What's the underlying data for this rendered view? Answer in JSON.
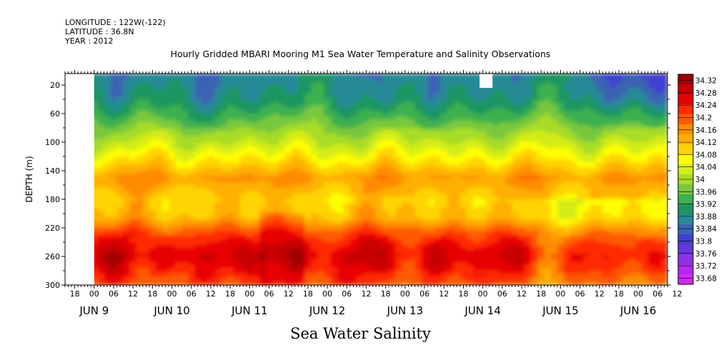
{
  "meta": {
    "longitude": "LONGITUDE : 122W(-122)",
    "latitude": "LATITUDE : 36.8N",
    "year": "YEAR : 2012"
  },
  "chart_data": {
    "type": "heatmap",
    "title": "Hourly Gridded MBARI Mooring M1 Sea Water Temperature and Salinity Observations",
    "xlabel": "Sea Water Salinity",
    "ylabel": "DEPTH (m)",
    "x_axis": {
      "hour_ticks": [
        "18",
        "00",
        "06",
        "12",
        "18",
        "00",
        "06",
        "12",
        "18",
        "00",
        "06",
        "12",
        "18",
        "00",
        "06",
        "12",
        "18",
        "00",
        "06",
        "12",
        "18",
        "00",
        "06",
        "12",
        "18",
        "00",
        "06",
        "12",
        "18",
        "00",
        "06",
        "12"
      ],
      "day_labels": [
        "JUN  9",
        "JUN 10",
        "JUN 11",
        "JUN 12",
        "JUN 13",
        "JUN 14",
        "JUN 15",
        "JUN 16"
      ],
      "range_hours": [
        0,
        186
      ]
    },
    "y_axis": {
      "ticks": [
        20,
        60,
        100,
        140,
        180,
        220,
        260,
        300
      ],
      "range": [
        4,
        300
      ],
      "inverted": true
    },
    "colorbar": {
      "levels": [
        "34.32",
        "34.28",
        "34.24",
        "34.2",
        "34.16",
        "34.12",
        "34.08",
        "34.04",
        "34",
        "33.96",
        "33.92",
        "33.88",
        "33.84",
        "33.8",
        "33.76",
        "33.72",
        "33.68"
      ],
      "colors": [
        "#a00000",
        "#c80000",
        "#e80000",
        "#ff2c00",
        "#ff5a00",
        "#ff8c00",
        "#ffb000",
        "#ffd400",
        "#ffff00",
        "#d4ec14",
        "#a8dc28",
        "#78c83c",
        "#3cb050",
        "#1e9660",
        "#288a96",
        "#3a64b4",
        "#4040d0",
        "#6438dc",
        "#8c32e6",
        "#b428f0",
        "#d228f5"
      ],
      "min": 33.68,
      "max": 34.32
    },
    "missing_data": [
      {
        "hour_start": 0,
        "hour_end": 9,
        "depth_start": 4,
        "depth_end": 300
      },
      {
        "hour_start": 128,
        "hour_end": 132,
        "depth_start": 4,
        "depth_end": 24
      }
    ],
    "salinity_profile": [
      {
        "depth": 10,
        "value": 33.88
      },
      {
        "depth": 40,
        "value": 33.9
      },
      {
        "depth": 70,
        "value": 33.96
      },
      {
        "depth": 100,
        "value": 34.02
      },
      {
        "depth": 125,
        "value": 34.08
      },
      {
        "depth": 150,
        "value": 34.15
      },
      {
        "depth": 180,
        "value": 34.1
      },
      {
        "depth": 205,
        "value": 34.12
      },
      {
        "depth": 225,
        "value": 34.2
      },
      {
        "depth": 245,
        "value": 34.25
      },
      {
        "depth": 260,
        "value": 34.27
      },
      {
        "depth": 280,
        "value": 34.24
      },
      {
        "depth": 300,
        "value": 34.2
      }
    ]
  }
}
